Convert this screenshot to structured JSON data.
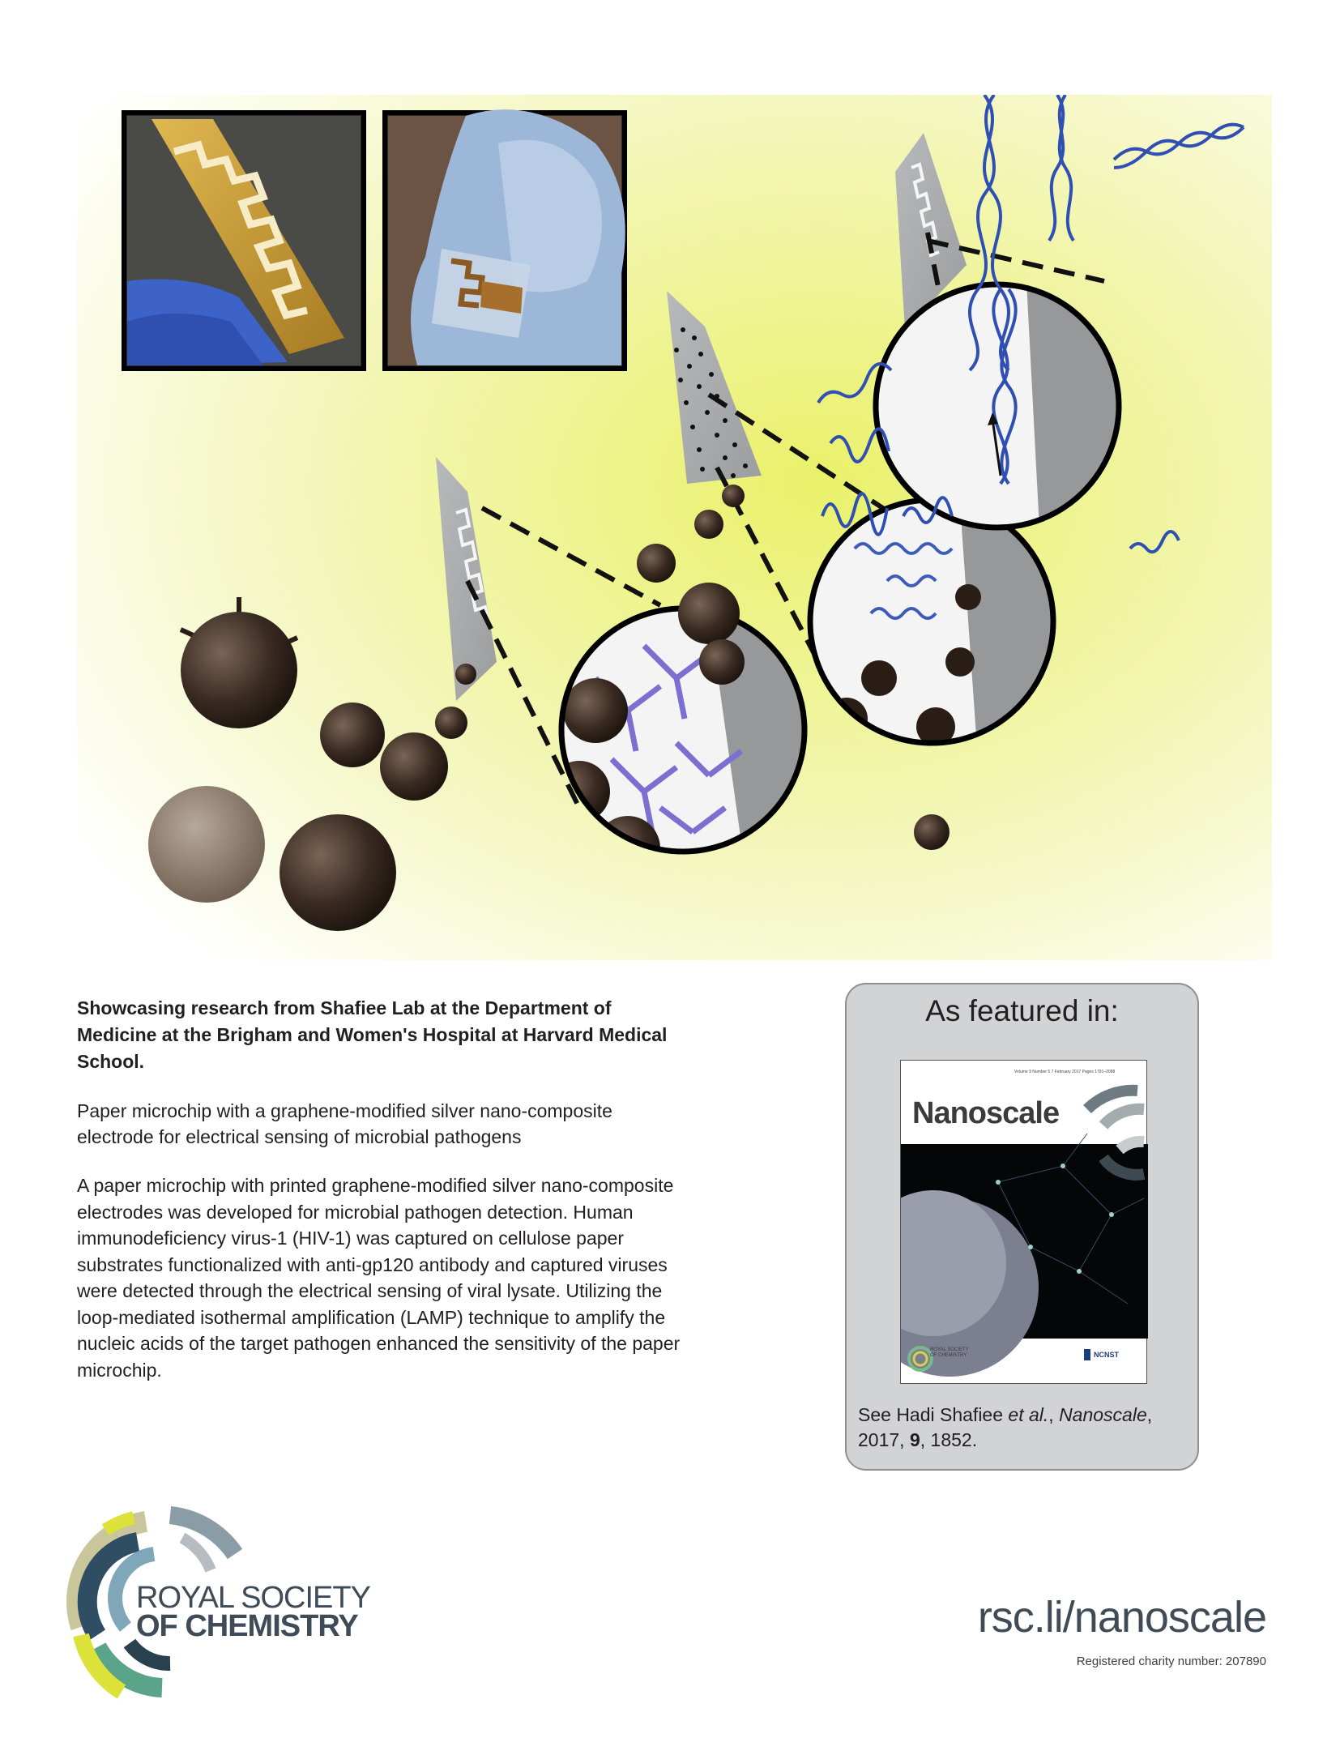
{
  "showcase": "Showcasing research from Shafiee Lab at the Department of Medicine at the Brigham and Women's Hospital at Harvard Medical School.",
  "article_title": "Paper microchip with a graphene-modified silver nano-composite electrode for electrical sensing of microbial pathogens",
  "abstract": "A paper microchip with printed graphene-modified silver nano-composite electrodes was developed for microbial pathogen detection. Human immunodeficiency virus-1 (HIV-1) was captured on cellulose paper substrates functionalized with anti-gp120 antibody and captured viruses were detected through the electrical sensing of viral lysate. Utilizing the loop-mediated isothermal amplification (LAMP) technique to amplify the nucleic acids of the target pathogen enhanced the sensitivity of the paper microchip.",
  "featured": {
    "heading": "As featured in:",
    "cover": {
      "journal": "Nanoscale",
      "meta": "Volume 9  Number 5  7 February 2017  Pages 1791–2088",
      "ncnst": "NCNST",
      "rsc_small": "ROYAL SOCIETY\nOF CHEMISTRY"
    },
    "ref_prefix": "See Hadi Shafiee ",
    "ref_etal": "et al.",
    "ref_sep": ", ",
    "ref_journal": "Nanoscale",
    "ref_year": "2017, ",
    "ref_volume": "9",
    "ref_pages": ", 1852."
  },
  "rsc": {
    "line1": "ROYAL SOCIETY",
    "line2": "OF CHEMISTRY"
  },
  "url": "rsc.li/nanoscale",
  "charity": "Registered charity number: 207890",
  "colors": {
    "text": "#231f20",
    "brand_grey": "#3f4b56",
    "panel": "#d2d3d5",
    "background_yellow": "#e9f07a"
  }
}
